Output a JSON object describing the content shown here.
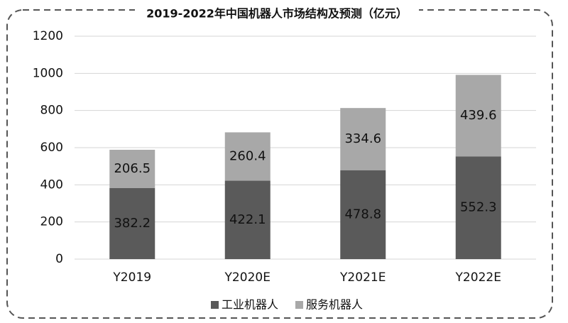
{
  "chart_data": {
    "type": "stacked_bar",
    "title": "2019-2022年中国机器人市场结构及预测（亿元）",
    "categories": [
      "Y2019",
      "Y2020E",
      "Y2021E",
      "Y2022E"
    ],
    "series": [
      {
        "name": "工业机器人",
        "color": "#5a5a5a",
        "values": [
          382.2,
          422.1,
          478.8,
          552.3
        ]
      },
      {
        "name": "服务机器人",
        "color": "#a8a8a8",
        "values": [
          206.5,
          260.4,
          334.6,
          439.6
        ]
      }
    ],
    "ylim": [
      0,
      1200
    ],
    "yticks": [
      0,
      200,
      400,
      600,
      800,
      1000,
      1200
    ],
    "grid": true,
    "legend": "bottom"
  }
}
